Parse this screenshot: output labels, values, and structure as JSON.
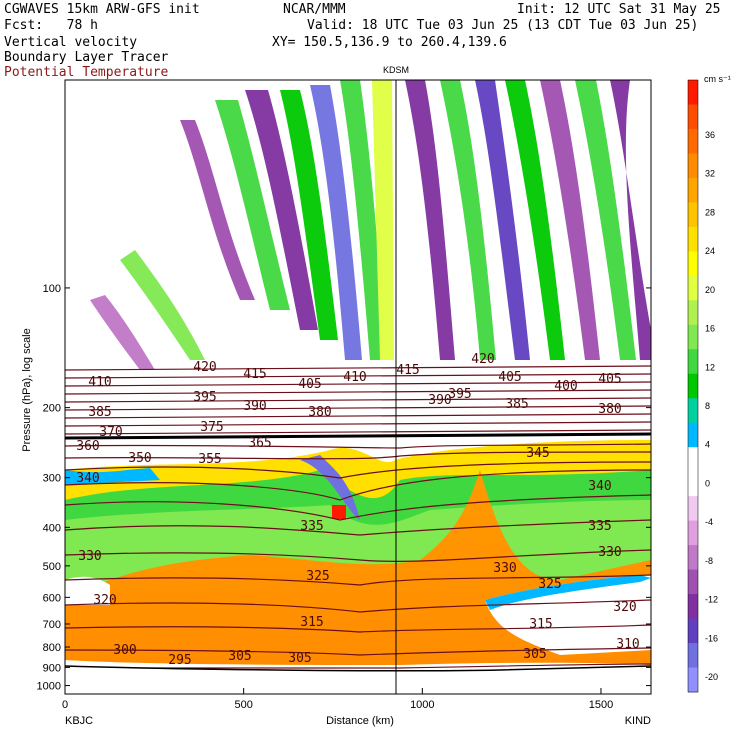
{
  "header": {
    "title": "CGWAVES 15km ARW-GFS init",
    "forecast": "Fcst:   78 h",
    "field1": "Vertical velocity",
    "field2": "Boundary Layer Tracer",
    "field3": "Potential Temperature",
    "center": "NCAR/MMM",
    "xy": "XY= 150.5,136.9 to 260.4,139.6",
    "init": "Init: 12 UTC Sat 31 May 25",
    "valid": "Valid: 18 UTC Tue 03 Jun 25 (13 CDT Tue 03 Jun 25)"
  },
  "chart_data": {
    "type": "heatmap",
    "xlabel": "Distance (km)",
    "ylabel": "Pressure (hPa), log scale",
    "xlim": [
      0,
      1640
    ],
    "ylim": [
      1050,
      30
    ],
    "x_ticks": [
      "0",
      "500",
      "1000",
      "1500"
    ],
    "y_ticks": [
      "100",
      "200",
      "300",
      "400",
      "500",
      "600",
      "700",
      "800",
      "900",
      "1000"
    ],
    "endpoint_labels": {
      "left": "KBJC",
      "right": "KIND",
      "marker": "KDSM"
    },
    "marker_x_km": 930,
    "colorbar": {
      "unit": "cm s⁻¹",
      "labels": [
        "36",
        "32",
        "28",
        "24",
        "20",
        "16",
        "12",
        "8",
        "4",
        "0",
        "-4",
        "-8",
        "-12",
        "-16",
        "-20"
      ],
      "colors": [
        "#ff1a00",
        "#ff4d00",
        "#ff6a00",
        "#ff8c00",
        "#ffa500",
        "#ffc400",
        "#ffe000",
        "#ffff00",
        "#e0ff40",
        "#b0f050",
        "#80e850",
        "#40d840",
        "#00c800",
        "#00d0a0",
        "#00b8ff",
        "#ffffff",
        "#ffffff",
        "#f0c8f0",
        "#e0a0e0",
        "#c078c8",
        "#a050b0",
        "#8030a0",
        "#6040c0",
        "#7070e0",
        "#9090ff"
      ]
    },
    "theta_contour_labels": [
      "420",
      "415",
      "410",
      "405",
      "400",
      "395",
      "390",
      "385",
      "380",
      "375",
      "370",
      "365",
      "360",
      "355",
      "350",
      "345",
      "340",
      "335",
      "330",
      "325",
      "320",
      "315",
      "310",
      "305",
      "300",
      "295"
    ]
  }
}
